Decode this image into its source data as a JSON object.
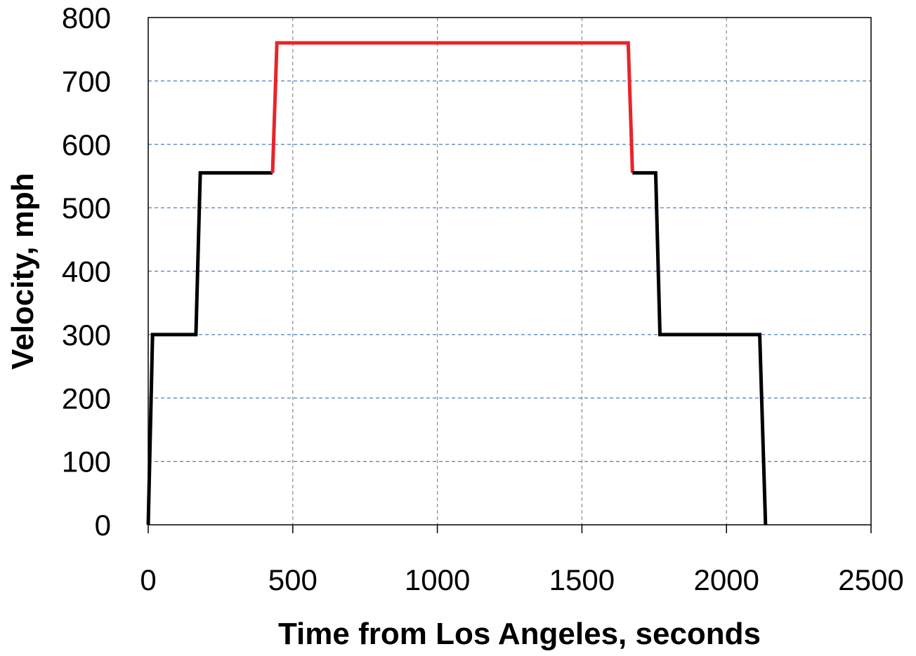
{
  "chart_data": {
    "type": "line",
    "title": "",
    "xlabel": "Time from Los Angeles, seconds",
    "ylabel": "Velocity, mph",
    "xlim": [
      0,
      2500
    ],
    "ylim": [
      0,
      800
    ],
    "x_ticks": [
      0,
      500,
      1000,
      1500,
      2000,
      2500
    ],
    "y_ticks": [
      0,
      100,
      200,
      300,
      400,
      500,
      600,
      700,
      800
    ],
    "x_tick_labels": [
      "0",
      "500",
      "1000",
      "1500",
      "2000",
      "2500"
    ],
    "y_tick_labels": [
      "0",
      "100",
      "200",
      "300",
      "400",
      "500",
      "600",
      "700",
      "800"
    ],
    "grid": true,
    "legend": "none",
    "series": [
      {
        "color": "#000000",
        "x": [
          0,
          15,
          165,
          180,
          430
        ],
        "y": [
          0,
          300,
          300,
          555,
          555
        ]
      },
      {
        "color": "#e8242a",
        "x": [
          430,
          445,
          1660,
          1675
        ],
        "y": [
          555,
          760,
          760,
          555
        ]
      },
      {
        "color": "#000000",
        "x": [
          1675,
          1755,
          1770,
          2115,
          2135
        ],
        "y": [
          555,
          555,
          300,
          300,
          0
        ]
      }
    ]
  }
}
